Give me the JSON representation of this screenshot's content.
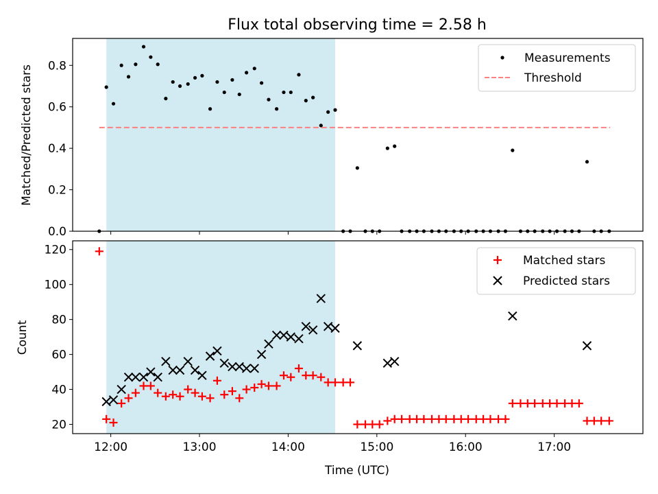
{
  "title": "Flux total observing time = 2.58 h",
  "top_panel": {
    "ylabel": "Matched/Predicted stars",
    "legend": {
      "measurements": "Measurements",
      "threshold": "Threshold"
    }
  },
  "bottom_panel": {
    "ylabel": "Count",
    "xlabel": "Time (UTC)",
    "legend": {
      "matched": "Matched stars",
      "predicted": "Predicted stars"
    }
  },
  "chart_data": [
    {
      "type": "scatter",
      "panel": "top",
      "title": "Flux total observing time = 2.58 h",
      "xlabel": "",
      "ylabel": "Matched/Predicted stars",
      "x_unit": "hours UTC",
      "xlim": [
        11.57,
        18.0
      ],
      "ylim": [
        0,
        0.93
      ],
      "yticks": [
        0.0,
        0.2,
        0.4,
        0.6,
        0.8
      ],
      "yticklabels": [
        "0.0",
        "0.2",
        "0.4",
        "0.6",
        "0.8"
      ],
      "shaded_span": {
        "x0": 11.95,
        "x1": 14.53,
        "color": "#add8e6"
      },
      "threshold": {
        "name": "Threshold",
        "y": 0.5,
        "x0": 11.87,
        "x1": 17.63,
        "color": "#ff8080",
        "style": "dashed"
      },
      "legend_position": "top-right",
      "series": [
        {
          "name": "Measurements",
          "marker": "dot",
          "color": "#000000",
          "x": [
            11.87,
            11.95,
            12.03,
            12.12,
            12.2,
            12.28,
            12.37,
            12.45,
            12.53,
            12.62,
            12.7,
            12.78,
            12.87,
            12.95,
            13.03,
            13.12,
            13.2,
            13.28,
            13.37,
            13.45,
            13.53,
            13.62,
            13.7,
            13.78,
            13.87,
            13.95,
            14.03,
            14.12,
            14.2,
            14.28,
            14.37,
            14.45,
            14.53,
            14.62,
            14.7,
            14.78,
            14.87,
            14.95,
            15.03,
            15.12,
            15.2,
            15.28,
            15.37,
            15.45,
            15.53,
            15.62,
            15.7,
            15.78,
            15.87,
            15.95,
            16.03,
            16.12,
            16.2,
            16.28,
            16.37,
            16.45,
            16.53,
            16.62,
            16.7,
            16.78,
            16.87,
            16.95,
            17.03,
            17.12,
            17.2,
            17.28,
            17.37,
            17.45,
            17.53,
            17.62
          ],
          "y": [
            0.0,
            0.695,
            0.615,
            0.8,
            0.745,
            0.805,
            0.89,
            0.84,
            0.805,
            0.64,
            0.72,
            0.7,
            0.71,
            0.74,
            0.75,
            0.59,
            0.72,
            0.67,
            0.73,
            0.66,
            0.765,
            0.785,
            0.715,
            0.635,
            0.59,
            0.67,
            0.67,
            0.755,
            0.63,
            0.645,
            0.51,
            0.575,
            0.585,
            0.0,
            0.0,
            0.305,
            0.0,
            0.0,
            0.0,
            0.4,
            0.41,
            0.0,
            0.0,
            0.0,
            0.0,
            0.0,
            0.0,
            0.0,
            0.0,
            0.0,
            0.0,
            0.0,
            0.0,
            0.0,
            0.0,
            0.0,
            0.39,
            0.0,
            0.0,
            0.0,
            0.0,
            0.0,
            0.0,
            0.0,
            0.0,
            0.0,
            0.335,
            0.0,
            0.0,
            0.0
          ]
        }
      ]
    },
    {
      "type": "scatter",
      "panel": "bottom",
      "xlabel": "Time (UTC)",
      "ylabel": "Count",
      "x_unit": "hours UTC",
      "xlim": [
        11.57,
        18.0
      ],
      "ylim": [
        14.7,
        125
      ],
      "xticks": [
        12,
        13,
        14,
        15,
        16,
        17
      ],
      "xticklabels": [
        "12:00",
        "13:00",
        "14:00",
        "15:00",
        "16:00",
        "17:00"
      ],
      "yticks": [
        20,
        40,
        60,
        80,
        100,
        120
      ],
      "yticklabels": [
        "20",
        "40",
        "60",
        "80",
        "100",
        "120"
      ],
      "shaded_span": {
        "x0": 11.95,
        "x1": 14.53,
        "color": "#add8e6"
      },
      "legend_position": "top-right",
      "series": [
        {
          "name": "Matched stars",
          "marker": "plus",
          "color": "#ff0000",
          "x": [
            11.87,
            11.95,
            12.03,
            12.12,
            12.2,
            12.28,
            12.37,
            12.45,
            12.53,
            12.62,
            12.7,
            12.78,
            12.87,
            12.95,
            13.03,
            13.12,
            13.2,
            13.28,
            13.37,
            13.45,
            13.53,
            13.62,
            13.7,
            13.78,
            13.87,
            13.95,
            14.03,
            14.12,
            14.2,
            14.28,
            14.37,
            14.45,
            14.53,
            14.62,
            14.7,
            14.78,
            14.87,
            14.95,
            15.03,
            15.12,
            15.2,
            15.28,
            15.37,
            15.45,
            15.53,
            15.62,
            15.7,
            15.78,
            15.87,
            15.95,
            16.03,
            16.12,
            16.2,
            16.28,
            16.37,
            16.45,
            16.53,
            16.62,
            16.7,
            16.78,
            16.87,
            16.95,
            17.03,
            17.12,
            17.2,
            17.28,
            17.37,
            17.45,
            17.53,
            17.62
          ],
          "y": [
            119,
            23,
            21,
            32,
            35,
            38,
            42,
            42,
            38,
            36,
            37,
            36,
            40,
            38,
            36,
            35,
            45,
            37,
            39,
            35,
            40,
            41,
            43,
            42,
            42,
            48,
            47,
            52,
            48,
            48,
            47,
            44,
            44,
            44,
            44,
            20,
            20,
            20,
            20,
            22,
            23,
            23,
            23,
            23,
            23,
            23,
            23,
            23,
            23,
            23,
            23,
            23,
            23,
            23,
            23,
            23,
            32,
            32,
            32,
            32,
            32,
            32,
            32,
            32,
            32,
            32,
            22,
            22,
            22,
            22
          ]
        },
        {
          "name": "Predicted stars",
          "marker": "x",
          "color": "#000000",
          "x": [
            11.95,
            12.03,
            12.12,
            12.2,
            12.28,
            12.37,
            12.45,
            12.53,
            12.62,
            12.7,
            12.78,
            12.87,
            12.95,
            13.03,
            13.12,
            13.2,
            13.28,
            13.37,
            13.45,
            13.53,
            13.62,
            13.7,
            13.78,
            13.87,
            13.95,
            14.03,
            14.12,
            14.2,
            14.28,
            14.37,
            14.45,
            14.53,
            14.78,
            15.12,
            15.2,
            16.53,
            17.37
          ],
          "y": [
            33,
            34,
            40,
            47,
            47,
            47,
            50,
            47,
            56,
            51,
            51,
            56,
            51,
            48,
            59,
            62,
            55,
            53,
            53,
            52,
            52,
            60,
            66,
            71,
            71,
            70,
            69,
            76,
            74,
            92,
            76,
            75,
            65,
            55,
            56,
            82,
            65
          ]
        }
      ]
    }
  ]
}
